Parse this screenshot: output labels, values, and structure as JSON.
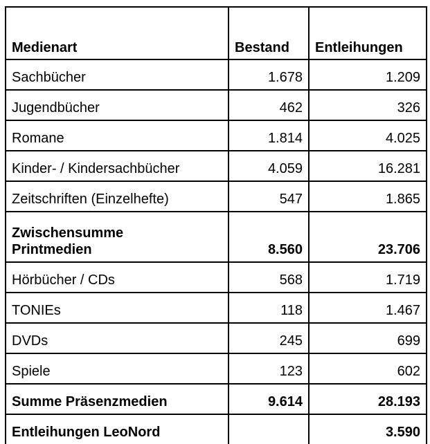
{
  "header": {
    "medienart": "Medienart",
    "bestand": "Bestand",
    "entleihungen": "Entleihungen"
  },
  "rows_print": [
    {
      "name": "Sachbücher",
      "bestand": "1.678",
      "entleihungen": "1.209"
    },
    {
      "name": "Jugendbücher",
      "bestand": "462",
      "entleihungen": "326"
    },
    {
      "name": "Romane",
      "bestand": "1.814",
      "entleihungen": "4.025"
    },
    {
      "name": "Kinder- / Kindersachbücher",
      "bestand": "4.059",
      "entleihungen": "16.281"
    },
    {
      "name": "Zeitschriften (Einzelhefte)",
      "bestand": "547",
      "entleihungen": "1.865"
    }
  ],
  "subtotal": {
    "line1": "Zwischensumme",
    "line2": "Printmedien",
    "bestand": "8.560",
    "entleihungen": "23.706"
  },
  "rows_other": [
    {
      "name": "Hörbücher / CDs",
      "bestand": "568",
      "entleihungen": "1.719"
    },
    {
      "name": "TONIEs",
      "bestand": "118",
      "entleihungen": "1.467"
    },
    {
      "name": "DVDs",
      "bestand": "245",
      "entleihungen": "699"
    },
    {
      "name": "Spiele",
      "bestand": "123",
      "entleihungen": "602"
    }
  ],
  "total": {
    "name": "Summe Präsenzmedien",
    "bestand": "9.614",
    "entleihungen": "28.193"
  },
  "leonord": {
    "name": "Entleihungen LeoNord",
    "bestand": "",
    "entleihungen": "3.590"
  }
}
